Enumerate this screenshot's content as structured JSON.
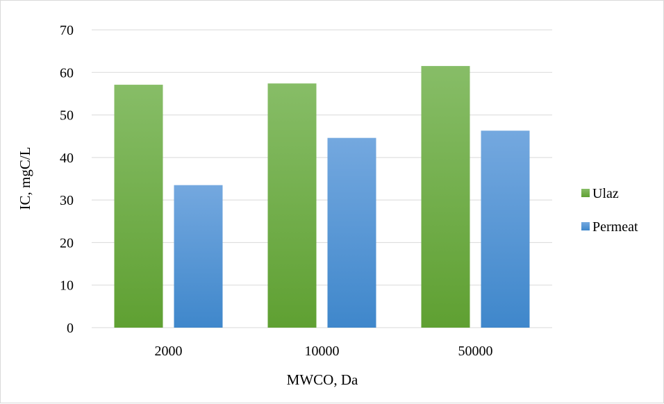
{
  "chart_data": {
    "type": "bar",
    "categories": [
      "2000",
      "10000",
      "50000"
    ],
    "series": [
      {
        "name": "Ulaz",
        "values": [
          57.1,
          57.4,
          61.5
        ],
        "color": "#70ad47"
      },
      {
        "name": "Permeat",
        "values": [
          33.5,
          44.6,
          46.3
        ],
        "color": "#5b9bd5"
      }
    ],
    "xlabel": "MWCO, Da",
    "ylabel": "IC, mgC/L",
    "ylim": [
      0,
      70
    ],
    "yticks": [
      "0",
      "10",
      "20",
      "30",
      "40",
      "50",
      "60",
      "70"
    ],
    "grid": true,
    "legend_position": "right"
  }
}
